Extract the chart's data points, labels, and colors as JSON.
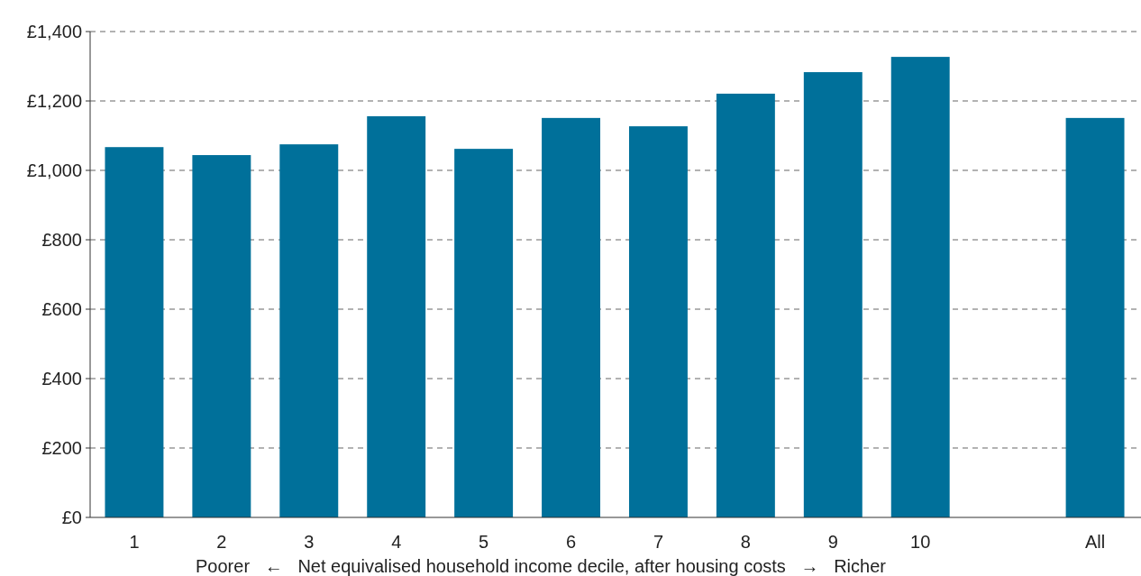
{
  "chart_data": {
    "type": "bar",
    "xlabel": "Poorer   ←   Net equivalised household income decile, after housing costs   →   Richer",
    "categories": [
      "1",
      "2",
      "3",
      "4",
      "5",
      "6",
      "7",
      "8",
      "9",
      "10",
      null,
      "All"
    ],
    "values": [
      1067,
      1044,
      1075,
      1156,
      1062,
      1151,
      1127,
      1221,
      1283,
      1327,
      null,
      1151
    ],
    "color": "#00709a",
    "ylim": [
      0,
      1400
    ],
    "yticks": [
      {
        "value": 0,
        "label": "£0"
      },
      {
        "value": 200,
        "label": "£200"
      },
      {
        "value": 400,
        "label": "£400"
      },
      {
        "value": 600,
        "label": "£600"
      },
      {
        "value": 800,
        "label": "£800"
      },
      {
        "value": 1000,
        "label": "£1,000"
      },
      {
        "value": 1200,
        "label": "£1,200"
      },
      {
        "value": 1400,
        "label": "£1,400"
      }
    ],
    "grid": "y"
  }
}
